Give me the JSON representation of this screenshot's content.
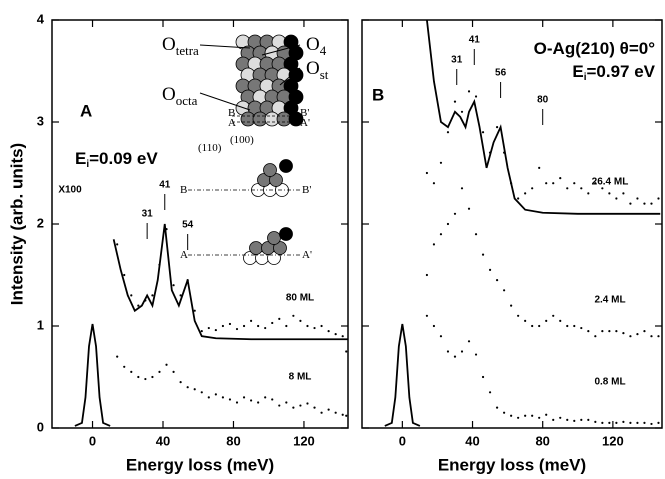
{
  "chart_data": [
    {
      "type": "line",
      "panel": "A",
      "x_label": "Energy loss (meV)",
      "y_label": "Intensity (arb. units)",
      "annotations": [
        {
          "text": "E",
          "sub": "i",
          "tail": "=0.09 eV"
        }
      ],
      "xlim": [
        -23,
        145
      ],
      "ylim": [
        0,
        4
      ],
      "xticks": [
        0,
        40,
        80,
        120
      ],
      "yticks": [
        0,
        1,
        2,
        3,
        4
      ],
      "peaks": [
        31,
        41,
        54
      ],
      "inset_labels": [
        {
          "text": "O",
          "sub": "tetra"
        },
        {
          "text": "O",
          "sub": "4"
        },
        {
          "text": "O",
          "sub": "st"
        },
        {
          "text": "O",
          "sub": "octa"
        },
        {
          "text": "B"
        },
        {
          "text": "B'"
        },
        {
          "text": "A"
        },
        {
          "text": "A'"
        },
        {
          "text": "(110)"
        },
        {
          "text": "(100)"
        },
        {
          "text": "B"
        },
        {
          "text": "B'"
        },
        {
          "text": "A"
        },
        {
          "text": "A'"
        }
      ],
      "series": [
        {
          "name": "X100",
          "mode": "line",
          "color": "#000",
          "x": [
            -10,
            -6,
            -4,
            -2,
            0,
            2,
            4,
            6,
            10
          ],
          "values": [
            0.02,
            0.05,
            0.3,
            0.8,
            1.02,
            0.8,
            0.3,
            0.05,
            0.02
          ]
        },
        {
          "mode": "line",
          "color": "#000",
          "x": [
            12,
            16,
            20,
            24,
            28,
            31,
            34,
            37,
            41,
            45,
            49,
            54,
            58,
            62,
            70,
            90,
            145
          ],
          "values": [
            1.85,
            1.55,
            1.3,
            1.15,
            1.2,
            1.3,
            1.2,
            1.45,
            2.0,
            1.35,
            1.2,
            1.45,
            1.05,
            0.9,
            0.88,
            0.87,
            0.87
          ]
        },
        {
          "name": "80 ML",
          "mode": "points",
          "color": "#000",
          "x": [
            14,
            18,
            22,
            26,
            30,
            34,
            38,
            42,
            46,
            50,
            54,
            58,
            62,
            66,
            70,
            74,
            78,
            82,
            86,
            90,
            94,
            98,
            102,
            106,
            110,
            114,
            118,
            122,
            126,
            130,
            134,
            138,
            142,
            144
          ],
          "values": [
            1.8,
            1.5,
            1.3,
            1.2,
            1.25,
            1.3,
            1.6,
            1.95,
            1.4,
            1.3,
            1.45,
            1.15,
            0.95,
            0.98,
            0.96,
            1.0,
            1.02,
            0.97,
            1.0,
            1.05,
            1.0,
            0.98,
            1.03,
            1.07,
            1.0,
            1.1,
            1.05,
            1.0,
            0.98,
            1.0,
            0.95,
            0.92,
            0.9,
            0.75
          ]
        },
        {
          "name": "8 ML",
          "mode": "points",
          "color": "#000",
          "x": [
            14,
            18,
            22,
            26,
            30,
            34,
            38,
            42,
            46,
            50,
            54,
            58,
            62,
            66,
            70,
            74,
            78,
            82,
            86,
            90,
            94,
            98,
            102,
            106,
            110,
            114,
            118,
            122,
            126,
            130,
            134,
            138,
            142,
            144
          ],
          "values": [
            0.7,
            0.6,
            0.55,
            0.5,
            0.48,
            0.5,
            0.55,
            0.62,
            0.55,
            0.45,
            0.4,
            0.38,
            0.35,
            0.3,
            0.33,
            0.3,
            0.28,
            0.25,
            0.3,
            0.27,
            0.25,
            0.3,
            0.28,
            0.22,
            0.25,
            0.2,
            0.22,
            0.24,
            0.2,
            0.15,
            0.18,
            0.15,
            0.13,
            0.12
          ]
        }
      ]
    },
    {
      "type": "line",
      "panel": "B",
      "x_label": "Energy loss (meV)",
      "annotations": [
        {
          "text": "O-Ag(210) θ=0°"
        },
        {
          "text": "E",
          "sub": "i",
          "tail": "=0.97 eV"
        }
      ],
      "xlim": [
        -23,
        148
      ],
      "ylim": [
        0,
        4
      ],
      "xticks": [
        0,
        40,
        80,
        120
      ],
      "yticks": [
        0,
        1,
        2,
        3,
        4
      ],
      "peaks": [
        31,
        41,
        56,
        80
      ],
      "series": [
        {
          "mode": "line",
          "color": "#000",
          "x": [
            -10,
            -6,
            -4,
            -2,
            0,
            2,
            4,
            6,
            10
          ],
          "values": [
            0.02,
            0.05,
            0.3,
            0.8,
            1.02,
            0.8,
            0.3,
            0.05,
            0.02
          ]
        },
        {
          "mode": "line",
          "color": "#000",
          "x": [
            14,
            18,
            22,
            26,
            30,
            33,
            36,
            38,
            41,
            44,
            48,
            52,
            56,
            60,
            64,
            70,
            80,
            100,
            147
          ],
          "values": [
            4.0,
            3.4,
            3.0,
            2.95,
            3.1,
            3.05,
            2.95,
            3.1,
            3.2,
            2.95,
            2.55,
            2.8,
            2.95,
            2.55,
            2.25,
            2.14,
            2.11,
            2.1,
            2.1
          ]
        },
        {
          "name": "26.4 ML",
          "mode": "points",
          "color": "#000",
          "x": [
            14,
            18,
            22,
            26,
            30,
            34,
            38,
            42,
            46,
            50,
            54,
            58,
            62,
            66,
            70,
            74,
            78,
            82,
            86,
            90,
            94,
            98,
            102,
            106,
            110,
            114,
            118,
            122,
            126,
            130,
            134,
            138,
            142,
            146
          ],
          "values": [
            2.5,
            2.4,
            2.6,
            2.9,
            3.2,
            3.1,
            3.3,
            3.25,
            2.9,
            2.7,
            2.95,
            2.7,
            2.4,
            2.25,
            2.3,
            2.35,
            2.55,
            2.4,
            2.4,
            2.45,
            2.35,
            2.4,
            2.35,
            2.3,
            2.4,
            2.35,
            2.3,
            2.25,
            2.3,
            2.2,
            2.25,
            2.2,
            2.2,
            2.25
          ]
        },
        {
          "name": "2.4 ML",
          "mode": "points",
          "color": "#000",
          "x": [
            14,
            18,
            22,
            26,
            30,
            34,
            38,
            42,
            46,
            50,
            54,
            58,
            62,
            66,
            70,
            74,
            78,
            82,
            86,
            90,
            94,
            98,
            102,
            106,
            110,
            114,
            118,
            122,
            126,
            130,
            134,
            138,
            142,
            146
          ],
          "values": [
            1.5,
            1.8,
            1.9,
            2.0,
            2.1,
            2.35,
            2.15,
            1.9,
            1.7,
            1.55,
            1.45,
            1.35,
            1.2,
            1.1,
            1.05,
            1.0,
            1.0,
            1.05,
            1.1,
            1.05,
            1.0,
            1.0,
            0.98,
            0.95,
            0.9,
            0.95,
            0.95,
            0.95,
            0.93,
            0.9,
            0.92,
            0.95,
            0.9,
            0.9
          ]
        },
        {
          "name": "0.8 ML",
          "mode": "points",
          "color": "#000",
          "x": [
            14,
            18,
            22,
            26,
            30,
            34,
            38,
            42,
            46,
            50,
            54,
            58,
            62,
            66,
            70,
            74,
            78,
            82,
            86,
            90,
            94,
            98,
            102,
            106,
            110,
            114,
            118,
            122,
            126,
            130,
            134,
            138,
            142,
            146
          ],
          "values": [
            1.1,
            1.0,
            0.9,
            0.75,
            0.7,
            0.75,
            0.85,
            0.72,
            0.5,
            0.35,
            0.2,
            0.15,
            0.12,
            0.1,
            0.12,
            0.12,
            0.1,
            0.13,
            0.08,
            0.1,
            0.08,
            0.07,
            0.08,
            0.08,
            0.06,
            0.05,
            0.05,
            0.05,
            0.06,
            0.05,
            0.05,
            0.05,
            0.04,
            0.05
          ]
        }
      ]
    }
  ]
}
